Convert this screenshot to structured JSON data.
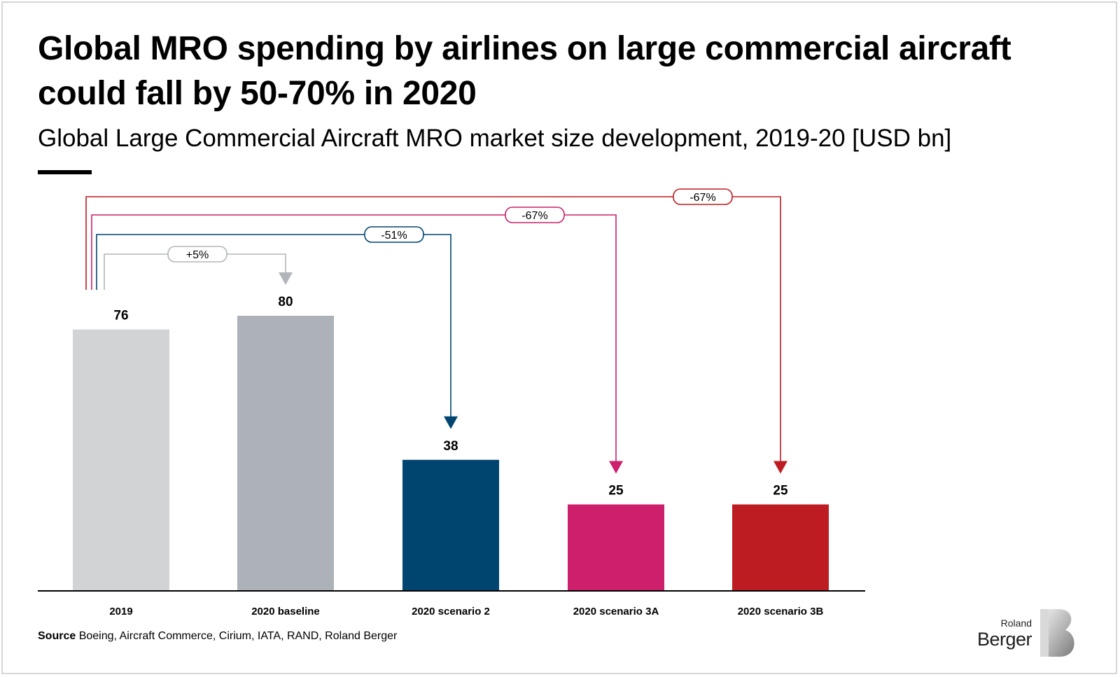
{
  "chart_data": {
    "type": "bar",
    "title": "Global MRO spending by airlines on large commercial aircraft could fall by 50-70% in 2020",
    "subtitle": "Global Large Commercial Aircraft MRO market size development, 2019-20 [USD bn]",
    "categories": [
      "2019",
      "2020 baseline",
      "2020 scenario 2",
      "2020 scenario 3A",
      "2020 scenario 3B"
    ],
    "values": [
      76,
      80,
      38,
      25,
      25
    ],
    "bar_colors": [
      "#d1d3d5",
      "#adb2b8",
      "#004570",
      "#cd1f6c",
      "#bd1c22"
    ],
    "ylim": [
      0,
      80
    ],
    "grid": false,
    "legend": "none",
    "changes": [
      {
        "from": "2019",
        "to": "2020 baseline",
        "label": "+5%",
        "color": "#b2b6ba"
      },
      {
        "from": "2019",
        "to": "2020 scenario 2",
        "label": "-51%",
        "color": "#004570"
      },
      {
        "from": "2019",
        "to": "2020 scenario 3A",
        "label": "-67%",
        "color": "#cd1f6c"
      },
      {
        "from": "2019",
        "to": "2020 scenario 3B",
        "label": "-67%",
        "color": "#bd1c22"
      }
    ]
  },
  "source": {
    "label": "Source",
    "text": " Boeing, Aircraft Commerce, Cirium, IATA, RAND, Roland Berger"
  },
  "logo": {
    "line1": "Roland",
    "line2": "Berger"
  }
}
